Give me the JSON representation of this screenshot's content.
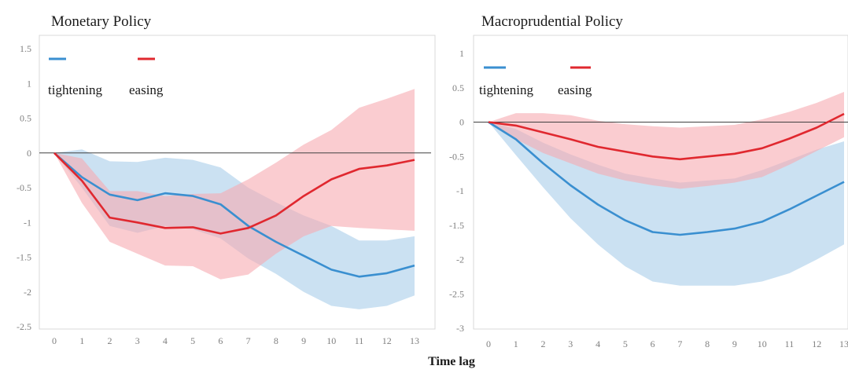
{
  "xlabel": "Time lag",
  "colors": {
    "tightening": "#3a8fd0",
    "easing": "#e0282f",
    "tightening_band": "#a9cde9",
    "easing_band": "#f6aab0",
    "zero_line": "#404040",
    "tick_text": "#7f7f7f"
  },
  "chart_data": [
    {
      "type": "line",
      "title": "Monetary Policy",
      "xlabel": "",
      "ylabel": "",
      "x": [
        0,
        1,
        2,
        3,
        4,
        5,
        6,
        7,
        8,
        9,
        10,
        11,
        12,
        13
      ],
      "xlim": [
        0,
        13
      ],
      "ylim": [
        -2.5,
        1.5
      ],
      "yticks": [
        1.5,
        1,
        0.5,
        0,
        -0.5,
        -1,
        -1.5,
        -2,
        -2.5
      ],
      "ytick_labels": [
        "1.5",
        "1",
        "0.5",
        "0",
        "-0.5",
        "-1",
        "-1.5",
        "-2",
        "-2.5"
      ],
      "xtick_labels": [
        "0",
        "1",
        "2",
        "3",
        "4",
        "5",
        "6",
        "7",
        "8",
        "9",
        "10",
        "11",
        "12",
        "13"
      ],
      "legend": {
        "placement": "top-left",
        "labels": [
          "tightening",
          "easing"
        ]
      },
      "series": [
        {
          "name": "tightening",
          "color": "#3a8fd0",
          "values": [
            0,
            -0.35,
            -0.6,
            -0.68,
            -0.58,
            -0.62,
            -0.74,
            -1.05,
            -1.28,
            -1.48,
            -1.68,
            -1.78,
            -1.73,
            -1.62
          ],
          "band_upper": [
            0,
            0.05,
            -0.12,
            -0.13,
            -0.07,
            -0.1,
            -0.21,
            -0.5,
            -0.71,
            -0.9,
            -1.05,
            -1.26,
            -1.26,
            -1.2
          ],
          "band_lower": [
            0,
            -0.5,
            -1.05,
            -1.15,
            -1.05,
            -1.1,
            -1.23,
            -1.52,
            -1.74,
            -2.0,
            -2.2,
            -2.25,
            -2.2,
            -2.05
          ]
        },
        {
          "name": "easing",
          "color": "#e0282f",
          "values": [
            0,
            -0.4,
            -0.93,
            -1.0,
            -1.08,
            -1.07,
            -1.16,
            -1.08,
            -0.9,
            -0.62,
            -0.38,
            -0.23,
            -0.18,
            -0.1
          ],
          "band_upper": [
            0,
            -0.08,
            -0.55,
            -0.55,
            -0.62,
            -0.59,
            -0.58,
            -0.38,
            -0.14,
            0.12,
            0.33,
            0.65,
            0.78,
            0.92
          ],
          "band_lower": [
            0,
            -0.72,
            -1.28,
            -1.45,
            -1.62,
            -1.63,
            -1.82,
            -1.75,
            -1.45,
            -1.2,
            -1.05,
            -1.08,
            -1.1,
            -1.12
          ]
        }
      ]
    },
    {
      "type": "line",
      "title": "Macroprudential Policy",
      "xlabel": "",
      "ylabel": "",
      "x": [
        0,
        1,
        2,
        3,
        4,
        5,
        6,
        7,
        8,
        9,
        10,
        11,
        12,
        13
      ],
      "xlim": [
        0,
        13
      ],
      "ylim": [
        -3,
        1
      ],
      "yticks": [
        1,
        0.5,
        0,
        -0.5,
        -1,
        -1.5,
        -2,
        -2.5,
        -3
      ],
      "ytick_labels": [
        "1",
        "0.5",
        "0",
        "-0.5",
        "-1",
        "-1.5",
        "-2",
        "-2.5",
        "-3"
      ],
      "xtick_labels": [
        "0",
        "1",
        "2",
        "3",
        "4",
        "5",
        "6",
        "7",
        "8",
        "9",
        "10",
        "11",
        "12",
        "13"
      ],
      "legend": {
        "placement": "top-left",
        "labels": [
          "tightening",
          "easing"
        ]
      },
      "series": [
        {
          "name": "tightening",
          "color": "#3a8fd0",
          "values": [
            0,
            -0.25,
            -0.6,
            -0.92,
            -1.2,
            -1.43,
            -1.6,
            -1.64,
            -1.6,
            -1.55,
            -1.45,
            -1.27,
            -1.07,
            -0.87
          ],
          "band_upper": [
            0,
            -0.1,
            -0.3,
            -0.47,
            -0.62,
            -0.75,
            -0.82,
            -0.88,
            -0.85,
            -0.82,
            -0.7,
            -0.55,
            -0.4,
            -0.28
          ],
          "band_lower": [
            0,
            -0.48,
            -0.95,
            -1.4,
            -1.78,
            -2.1,
            -2.32,
            -2.38,
            -2.38,
            -2.38,
            -2.32,
            -2.2,
            -2.0,
            -1.78
          ]
        },
        {
          "name": "easing",
          "color": "#e0282f",
          "values": [
            0,
            -0.05,
            -0.15,
            -0.25,
            -0.36,
            -0.43,
            -0.5,
            -0.54,
            -0.5,
            -0.46,
            -0.38,
            -0.24,
            -0.08,
            0.12
          ],
          "band_upper": [
            0,
            0.13,
            0.13,
            0.1,
            0.02,
            -0.03,
            -0.06,
            -0.08,
            -0.06,
            -0.04,
            0.04,
            0.15,
            0.28,
            0.44
          ],
          "band_lower": [
            0,
            -0.25,
            -0.45,
            -0.6,
            -0.75,
            -0.85,
            -0.92,
            -0.97,
            -0.93,
            -0.88,
            -0.8,
            -0.62,
            -0.42,
            -0.22
          ]
        }
      ]
    }
  ]
}
